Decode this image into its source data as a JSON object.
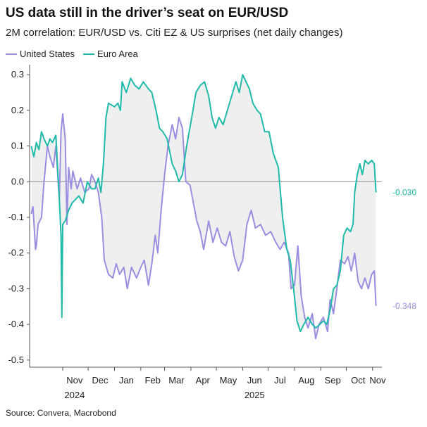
{
  "chart_data": {
    "type": "line",
    "title": "US data still in the driver’s seat on EUR/USD",
    "subtitle": "2M correlation: EUR/USD vs. Citi EZ & US surprises (net daily changes)",
    "source": "Source: Convera, Macrobond",
    "ylim": [
      -0.52,
      0.32
    ],
    "y_ticks": [
      0.3,
      0.2,
      0.1,
      0.0,
      -0.1,
      -0.2,
      -0.3,
      -0.4,
      -0.5
    ],
    "y_tick_labels": [
      "0.3",
      "0.2",
      "0.1",
      "0.0",
      "-0.1",
      "-0.2",
      "-0.3",
      "-0.4",
      "-0.5"
    ],
    "xlim": [
      "2024-09-23",
      "2025-11-12"
    ],
    "x_month_labels": [
      {
        "date": "2024-11-15",
        "label": "Nov"
      },
      {
        "date": "2024-12-15",
        "label": "Dec"
      },
      {
        "date": "2025-01-15",
        "label": "Jan"
      },
      {
        "date": "2025-02-15",
        "label": "Feb"
      },
      {
        "date": "2025-03-15",
        "label": "Mar"
      },
      {
        "date": "2025-04-15",
        "label": "Apr"
      },
      {
        "date": "2025-05-15",
        "label": "May"
      },
      {
        "date": "2025-06-15",
        "label": "Jun"
      },
      {
        "date": "2025-07-15",
        "label": "Jul"
      },
      {
        "date": "2025-08-15",
        "label": "Aug"
      },
      {
        "date": "2025-09-15",
        "label": "Sep"
      },
      {
        "date": "2025-10-15",
        "label": "Oct"
      },
      {
        "date": "2025-11-07",
        "label": "Nov"
      }
    ],
    "x_ticks": [
      "2024-11-01",
      "2024-12-01",
      "2025-01-01",
      "2025-02-01",
      "2025-03-01",
      "2025-04-01",
      "2025-05-01",
      "2025-06-01",
      "2025-07-01",
      "2025-08-01",
      "2025-09-01",
      "2025-10-01",
      "2025-11-01"
    ],
    "x_year_labels": [
      {
        "date": "2024-11-15",
        "label": "2024"
      },
      {
        "date": "2025-06-15",
        "label": "2025"
      }
    ],
    "zero_line": true,
    "grid": false,
    "legend_position": "top-left",
    "series": [
      {
        "name": "United States",
        "color": "#9b8ee0",
        "end_label": "-0.348",
        "points": [
          [
            "2024-09-25",
            -0.09
          ],
          [
            "2024-09-27",
            -0.07
          ],
          [
            "2024-09-30",
            -0.19
          ],
          [
            "2024-10-01",
            -0.18
          ],
          [
            "2024-10-03",
            -0.12
          ],
          [
            "2024-10-07",
            -0.1
          ],
          [
            "2024-10-10",
            0.0
          ],
          [
            "2024-10-14",
            0.1
          ],
          [
            "2024-10-17",
            0.07
          ],
          [
            "2024-10-21",
            0.04
          ],
          [
            "2024-10-24",
            0.1
          ],
          [
            "2024-10-28",
            -0.05
          ],
          [
            "2024-10-30",
            0.14
          ],
          [
            "2024-11-01",
            0.19
          ],
          [
            "2024-11-04",
            0.12
          ],
          [
            "2024-11-06",
            -0.12
          ],
          [
            "2024-11-08",
            0.04
          ],
          [
            "2024-11-11",
            -0.02
          ],
          [
            "2024-11-13",
            0.03
          ],
          [
            "2024-11-18",
            -0.02
          ],
          [
            "2024-11-22",
            0.01
          ],
          [
            "2024-11-27",
            -0.03
          ],
          [
            "2024-12-02",
            -0.02
          ],
          [
            "2024-12-05",
            0.02
          ],
          [
            "2024-12-09",
            0.0
          ],
          [
            "2024-12-13",
            -0.03
          ],
          [
            "2024-12-17",
            -0.1
          ],
          [
            "2024-12-20",
            -0.22
          ],
          [
            "2024-12-25",
            -0.26
          ],
          [
            "2024-12-30",
            -0.27
          ],
          [
            "2025-01-03",
            -0.23
          ],
          [
            "2025-01-07",
            -0.26
          ],
          [
            "2025-01-12",
            -0.24
          ],
          [
            "2025-01-16",
            -0.3
          ],
          [
            "2025-01-21",
            -0.24
          ],
          [
            "2025-01-27",
            -0.27
          ],
          [
            "2025-02-01",
            -0.24
          ],
          [
            "2025-02-05",
            -0.22
          ],
          [
            "2025-02-10",
            -0.29
          ],
          [
            "2025-02-14",
            -0.23
          ],
          [
            "2025-02-18",
            -0.15
          ],
          [
            "2025-02-21",
            -0.2
          ],
          [
            "2025-02-25",
            -0.08
          ],
          [
            "2025-03-01",
            0.02
          ],
          [
            "2025-03-05",
            0.1
          ],
          [
            "2025-03-10",
            0.16
          ],
          [
            "2025-03-14",
            0.12
          ],
          [
            "2025-03-18",
            0.18
          ],
          [
            "2025-03-22",
            0.15
          ],
          [
            "2025-03-26",
            0.0
          ],
          [
            "2025-03-31",
            -0.01
          ],
          [
            "2025-04-04",
            -0.06
          ],
          [
            "2025-04-08",
            -0.11
          ],
          [
            "2025-04-12",
            -0.14
          ],
          [
            "2025-04-16",
            -0.19
          ],
          [
            "2025-04-22",
            -0.11
          ],
          [
            "2025-04-27",
            -0.17
          ],
          [
            "2025-05-02",
            -0.13
          ],
          [
            "2025-05-07",
            -0.17
          ],
          [
            "2025-05-12",
            -0.18
          ],
          [
            "2025-05-17",
            -0.14
          ],
          [
            "2025-05-22",
            -0.21
          ],
          [
            "2025-05-27",
            -0.25
          ],
          [
            "2025-06-01",
            -0.22
          ],
          [
            "2025-06-06",
            -0.12
          ],
          [
            "2025-06-11",
            -0.08
          ],
          [
            "2025-06-16",
            -0.13
          ],
          [
            "2025-06-22",
            -0.12
          ],
          [
            "2025-06-28",
            -0.15
          ],
          [
            "2025-07-04",
            -0.14
          ],
          [
            "2025-07-10",
            -0.17
          ],
          [
            "2025-07-15",
            -0.19
          ],
          [
            "2025-07-20",
            -0.17
          ],
          [
            "2025-07-25",
            -0.2
          ],
          [
            "2025-07-28",
            -0.3
          ],
          [
            "2025-08-01",
            -0.29
          ],
          [
            "2025-08-05",
            -0.18
          ],
          [
            "2025-08-09",
            -0.32
          ],
          [
            "2025-08-13",
            -0.38
          ],
          [
            "2025-08-17",
            -0.41
          ],
          [
            "2025-08-22",
            -0.37
          ],
          [
            "2025-08-26",
            -0.44
          ],
          [
            "2025-08-30",
            -0.4
          ],
          [
            "2025-09-04",
            -0.38
          ],
          [
            "2025-09-09",
            -0.42
          ],
          [
            "2025-09-12",
            -0.33
          ],
          [
            "2025-09-16",
            -0.37
          ],
          [
            "2025-09-20",
            -0.3
          ],
          [
            "2025-09-24",
            -0.22
          ],
          [
            "2025-09-29",
            -0.23
          ],
          [
            "2025-10-03",
            -0.21
          ],
          [
            "2025-10-07",
            -0.25
          ],
          [
            "2025-10-11",
            -0.2
          ],
          [
            "2025-10-15",
            -0.28
          ],
          [
            "2025-10-19",
            -0.3
          ],
          [
            "2025-10-23",
            -0.27
          ],
          [
            "2025-10-27",
            -0.3
          ],
          [
            "2025-10-31",
            -0.26
          ],
          [
            "2025-11-03",
            -0.25
          ],
          [
            "2025-11-05",
            -0.348
          ]
        ]
      },
      {
        "name": "Euro Area",
        "color": "#1fbaa8",
        "end_label": "-0.030",
        "points": [
          [
            "2024-09-25",
            0.1
          ],
          [
            "2024-09-28",
            0.07
          ],
          [
            "2024-10-01",
            0.11
          ],
          [
            "2024-10-04",
            0.09
          ],
          [
            "2024-10-07",
            0.14
          ],
          [
            "2024-10-10",
            0.12
          ],
          [
            "2024-10-14",
            0.1
          ],
          [
            "2024-10-17",
            0.12
          ],
          [
            "2024-10-20",
            0.11
          ],
          [
            "2024-10-24",
            0.13
          ],
          [
            "2024-10-28",
            -0.05
          ],
          [
            "2024-10-30",
            -0.15
          ],
          [
            "2024-10-31",
            -0.38
          ],
          [
            "2024-11-01",
            -0.12
          ],
          [
            "2024-11-04",
            -0.11
          ],
          [
            "2024-11-08",
            -0.08
          ],
          [
            "2024-11-12",
            -0.06
          ],
          [
            "2024-11-16",
            -0.05
          ],
          [
            "2024-11-20",
            -0.04
          ],
          [
            "2024-11-25",
            -0.06
          ],
          [
            "2024-11-30",
            0.0
          ],
          [
            "2024-12-05",
            -0.02
          ],
          [
            "2024-12-09",
            -0.02
          ],
          [
            "2024-12-13",
            0.01
          ],
          [
            "2024-12-16",
            -0.03
          ],
          [
            "2024-12-19",
            0.05
          ],
          [
            "2024-12-22",
            0.18
          ],
          [
            "2024-12-25",
            0.22
          ],
          [
            "2025-01-01",
            0.21
          ],
          [
            "2025-01-05",
            0.22
          ],
          [
            "2025-01-08",
            0.2
          ],
          [
            "2025-01-10",
            0.28
          ],
          [
            "2025-01-15",
            0.25
          ],
          [
            "2025-01-20",
            0.29
          ],
          [
            "2025-01-25",
            0.27
          ],
          [
            "2025-01-30",
            0.26
          ],
          [
            "2025-02-04",
            0.28
          ],
          [
            "2025-02-10",
            0.26
          ],
          [
            "2025-02-14",
            0.25
          ],
          [
            "2025-02-19",
            0.2
          ],
          [
            "2025-02-23",
            0.15
          ],
          [
            "2025-02-27",
            0.14
          ],
          [
            "2025-03-04",
            0.12
          ],
          [
            "2025-03-10",
            0.05
          ],
          [
            "2025-03-14",
            0.03
          ],
          [
            "2025-03-18",
            0.0
          ],
          [
            "2025-03-22",
            0.02
          ],
          [
            "2025-03-27",
            0.1
          ],
          [
            "2025-04-02",
            0.18
          ],
          [
            "2025-04-07",
            0.25
          ],
          [
            "2025-04-12",
            0.27
          ],
          [
            "2025-04-17",
            0.28
          ],
          [
            "2025-04-22",
            0.24
          ],
          [
            "2025-04-26",
            0.18
          ],
          [
            "2025-04-30",
            0.15
          ],
          [
            "2025-05-04",
            0.18
          ],
          [
            "2025-05-09",
            0.16
          ],
          [
            "2025-05-14",
            0.2
          ],
          [
            "2025-05-19",
            0.24
          ],
          [
            "2025-05-24",
            0.28
          ],
          [
            "2025-05-28",
            0.25
          ],
          [
            "2025-06-01",
            0.3
          ],
          [
            "2025-06-05",
            0.28
          ],
          [
            "2025-06-09",
            0.26
          ],
          [
            "2025-06-13",
            0.22
          ],
          [
            "2025-06-18",
            0.2
          ],
          [
            "2025-06-22",
            0.19
          ],
          [
            "2025-06-27",
            0.14
          ],
          [
            "2025-07-02",
            0.14
          ],
          [
            "2025-07-07",
            0.08
          ],
          [
            "2025-07-13",
            0.04
          ],
          [
            "2025-07-18",
            -0.1
          ],
          [
            "2025-07-23",
            -0.19
          ],
          [
            "2025-07-27",
            -0.22
          ],
          [
            "2025-07-31",
            -0.3
          ],
          [
            "2025-08-04",
            -0.39
          ],
          [
            "2025-08-08",
            -0.42
          ],
          [
            "2025-08-12",
            -0.4
          ],
          [
            "2025-08-17",
            -0.38
          ],
          [
            "2025-08-22",
            -0.4
          ],
          [
            "2025-08-26",
            -0.41
          ],
          [
            "2025-08-31",
            -0.4
          ],
          [
            "2025-09-04",
            -0.39
          ],
          [
            "2025-09-08",
            -0.4
          ],
          [
            "2025-09-12",
            -0.36
          ],
          [
            "2025-09-16",
            -0.3
          ],
          [
            "2025-09-20",
            -0.29
          ],
          [
            "2025-09-24",
            -0.25
          ],
          [
            "2025-09-28",
            -0.15
          ],
          [
            "2025-10-02",
            -0.13
          ],
          [
            "2025-10-06",
            -0.14
          ],
          [
            "2025-10-09",
            -0.12
          ],
          [
            "2025-10-11",
            -0.03
          ],
          [
            "2025-10-14",
            0.02
          ],
          [
            "2025-10-17",
            0.05
          ],
          [
            "2025-10-20",
            0.02
          ],
          [
            "2025-10-23",
            0.06
          ],
          [
            "2025-10-27",
            0.05
          ],
          [
            "2025-10-31",
            0.06
          ],
          [
            "2025-11-03",
            0.05
          ],
          [
            "2025-11-05",
            -0.03
          ]
        ]
      }
    ]
  }
}
